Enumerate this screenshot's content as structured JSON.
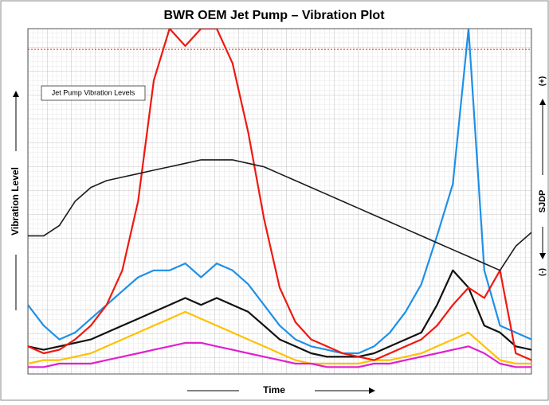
{
  "chart_data": {
    "type": "line",
    "title": "BWR OEM Jet Pump – Vibration Plot",
    "y_label": "Vibration Level",
    "x_label": "Time",
    "y2_label": "SJDP",
    "y2_plus": "(+)",
    "y2_minus": "(-)",
    "annotation": "Jet Pump Vibration Levels",
    "ylim": [
      0,
      100
    ],
    "grid": true,
    "threshold": {
      "value": 94,
      "color": "#e03020"
    },
    "series": [
      {
        "color": "#ffc000",
        "values": [
          3,
          4,
          4,
          5,
          6,
          8,
          10,
          12,
          14,
          16,
          18,
          16,
          14,
          12,
          10,
          8,
          6,
          4,
          3,
          3,
          3,
          3,
          4,
          4,
          5,
          6,
          8,
          10,
          12,
          8,
          4,
          3,
          3
        ]
      },
      {
        "color": "#e020d0",
        "values": [
          2,
          2,
          3,
          3,
          3,
          4,
          5,
          6,
          7,
          8,
          9,
          9,
          8,
          7,
          6,
          5,
          4,
          3,
          3,
          2,
          2,
          2,
          3,
          3,
          4,
          5,
          6,
          7,
          8,
          6,
          3,
          2,
          2
        ]
      },
      {
        "color": "#111111",
        "values": [
          8,
          7,
          8,
          9,
          10,
          12,
          14,
          16,
          18,
          20,
          22,
          20,
          22,
          20,
          18,
          14,
          10,
          8,
          6,
          5,
          5,
          5,
          6,
          8,
          10,
          12,
          20,
          30,
          25,
          14,
          12,
          8,
          7
        ]
      },
      {
        "color": "#1e90e8",
        "values": [
          20,
          14,
          10,
          12,
          16,
          20,
          24,
          28,
          30,
          30,
          32,
          28,
          32,
          30,
          26,
          20,
          14,
          10,
          8,
          7,
          6,
          6,
          8,
          12,
          18,
          26,
          40,
          55,
          100,
          30,
          14,
          12,
          10
        ]
      },
      {
        "color": "#f01810",
        "values": [
          8,
          6,
          7,
          10,
          14,
          20,
          30,
          50,
          85,
          100,
          95,
          100,
          100,
          90,
          70,
          45,
          25,
          15,
          10,
          8,
          6,
          5,
          4,
          6,
          8,
          10,
          14,
          20,
          25,
          22,
          30,
          6,
          4
        ]
      },
      {
        "color": "#1a1a1a",
        "axis": "y2",
        "values": [
          40,
          40,
          43,
          50,
          54,
          56,
          57,
          58,
          59,
          60,
          61,
          62,
          62,
          62,
          61,
          60,
          58,
          56,
          54,
          52,
          50,
          48,
          46,
          44,
          42,
          40,
          38,
          36,
          34,
          32,
          30,
          37,
          41
        ]
      }
    ]
  }
}
